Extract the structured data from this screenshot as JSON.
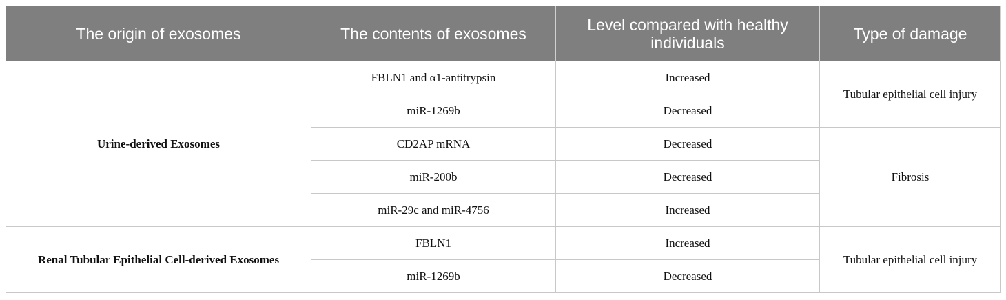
{
  "table": {
    "header": [
      "The origin of exosomes",
      "The contents of exosomes",
      "Level compared with healthy individuals",
      "Type of damage"
    ],
    "origins": [
      "Urine-derived Exosomes",
      "Renal Tubular Epithelial Cell-derived Exosomes"
    ],
    "damages": [
      "Tubular epithelial cell injury",
      "Fibrosis",
      "Tubular epithelial cell injury"
    ],
    "rows": [
      [
        "FBLN1 and α1-antitrypsin",
        "Increased"
      ],
      [
        "miR-1269b",
        "Decreased"
      ],
      [
        "CD2AP mRNA",
        "Decreased"
      ],
      [
        "miR-200b",
        "Decreased"
      ],
      [
        "miR-29c and miR-4756",
        "Increased"
      ],
      [
        "FBLN1",
        "Increased"
      ],
      [
        "miR-1269b",
        "Decreased"
      ]
    ]
  }
}
